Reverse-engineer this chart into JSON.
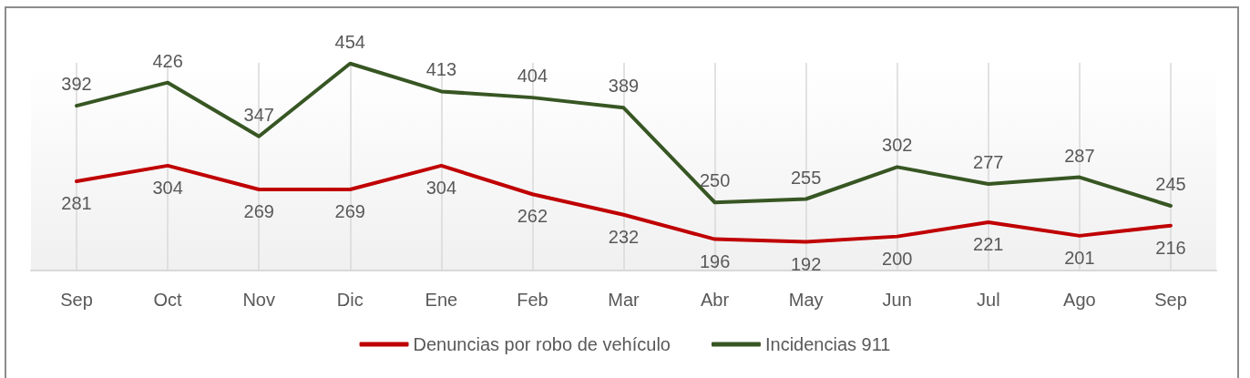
{
  "chart_data": {
    "type": "line",
    "categories": [
      "Sep",
      "Oct",
      "Nov",
      "Dic",
      "Ene",
      "Feb",
      "Mar",
      "Abr",
      "May",
      "Jun",
      "Jul",
      "Ago",
      "Sep"
    ],
    "series": [
      {
        "name": "Denuncias por robo de vehículo",
        "color": "#c00000",
        "values": [
          281,
          304,
          269,
          269,
          304,
          262,
          232,
          196,
          192,
          200,
          221,
          201,
          216
        ]
      },
      {
        "name": "Incidencias 911",
        "color": "#375623",
        "values": [
          392,
          426,
          347,
          454,
          413,
          404,
          389,
          250,
          255,
          302,
          277,
          287,
          245
        ]
      }
    ],
    "ylim": [
      150,
      455
    ],
    "data_labels": true,
    "grid": "x",
    "legend": "bottom",
    "tick_labels": "x",
    "marker": "none",
    "line_style": "solid"
  }
}
